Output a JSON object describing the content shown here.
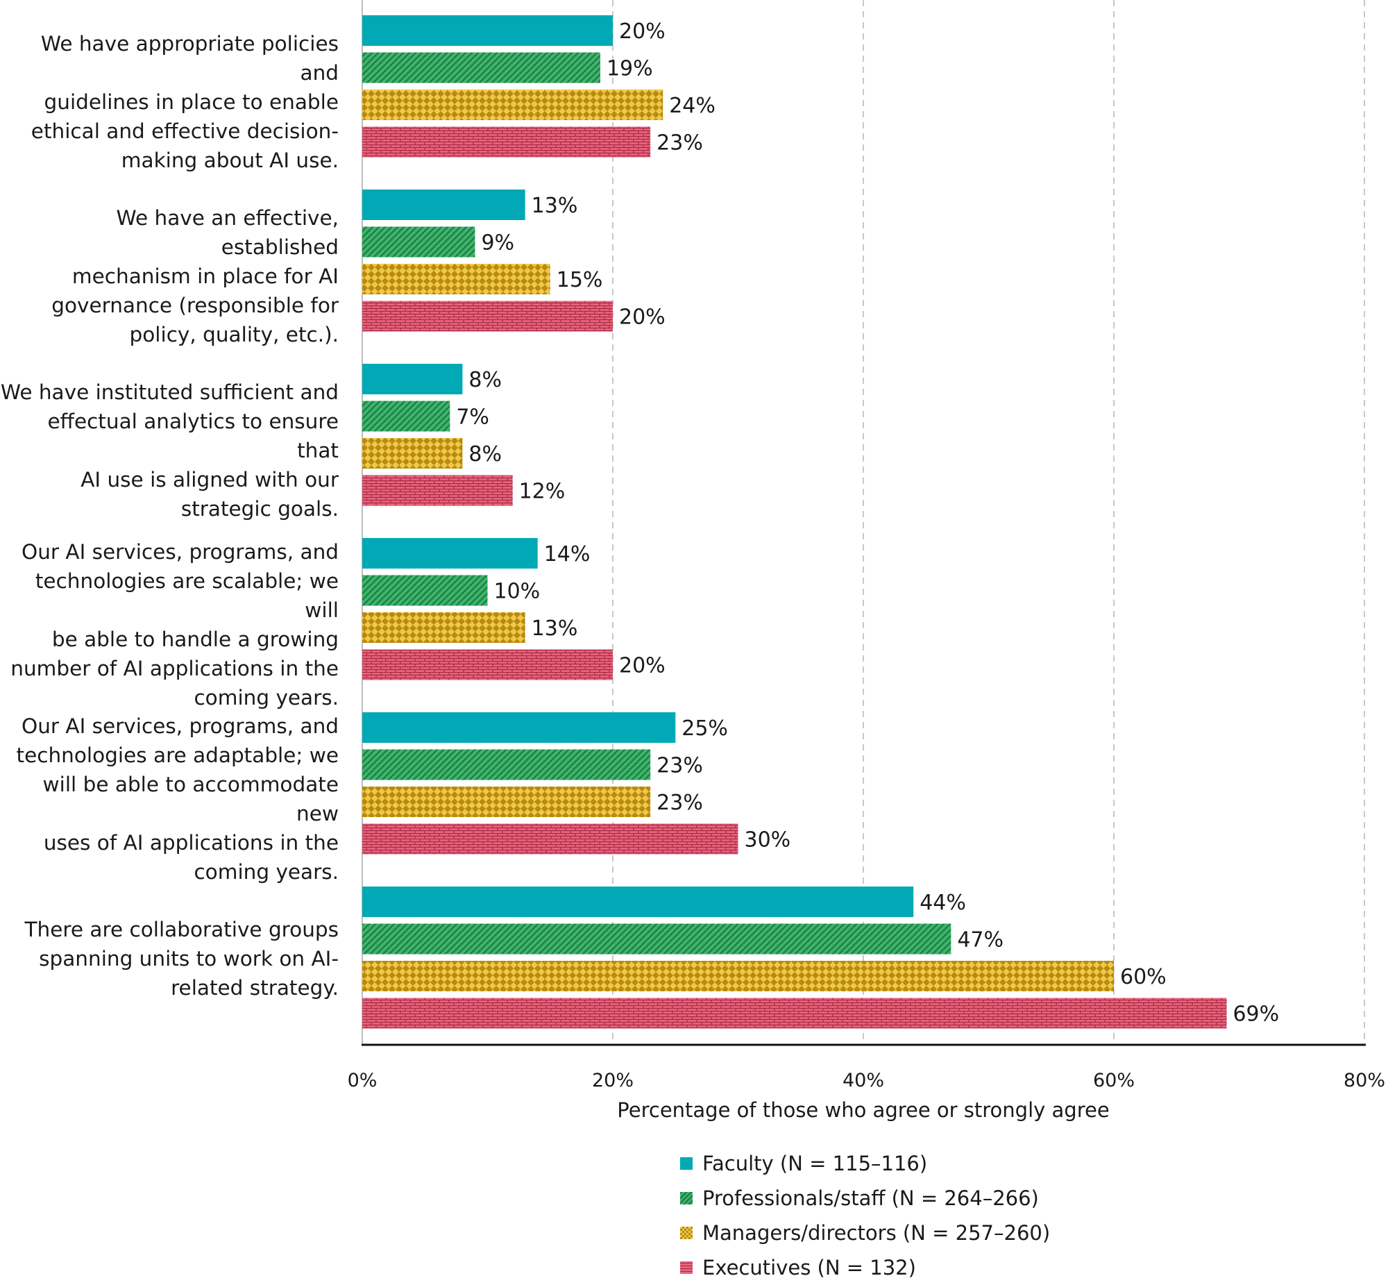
{
  "chart_data": {
    "type": "bar",
    "orientation": "horizontal",
    "categories": [
      "We have appropriate policies and guidelines in place to enable ethical and effective decision-making about AI use.",
      "We have an effective, established mechanism in place for AI governance (responsible for policy, quality, etc.).",
      "We have instituted sufficient and effectual analytics to ensure that AI use is aligned with our strategic goals.",
      "Our AI services, programs, and technologies are scalable; we will be able to handle a growing number of AI applications in the coming years.",
      "Our AI services, programs, and technologies are adaptable; we will be able to accommodate new uses of AI applications in the coming years.",
      "There are collaborative groups spanning units to work on AI-related strategy."
    ],
    "category_lines": [
      [
        "We have appropriate policies and",
        "guidelines in place to enable",
        "ethical and effective decision-",
        "making about AI use."
      ],
      [
        "We have an effective, established",
        "mechanism in place for AI",
        "governance (responsible for",
        "policy, quality, etc.)."
      ],
      [
        "We have instituted sufficient and",
        "effectual analytics to ensure that",
        "AI use is aligned with our",
        "strategic goals."
      ],
      [
        "Our AI services, programs, and",
        "technologies are scalable; we will",
        "be able to handle a growing",
        "number of AI applications in the",
        "coming years."
      ],
      [
        "Our AI services, programs, and",
        "technologies are adaptable; we",
        "will be able to accommodate new",
        "uses of AI applications in the",
        "coming years."
      ],
      [
        "There are collaborative groups",
        "spanning units to work on AI-",
        "related strategy."
      ]
    ],
    "series": [
      {
        "name": "Faculty (N = 115–116)",
        "color": "#00a9b5",
        "pattern": "solid",
        "values": [
          20,
          13,
          8,
          14,
          25,
          44
        ]
      },
      {
        "name": "Professionals/staff (N = 264–266)",
        "color": "#3db56b",
        "pattern": "diagonal",
        "values": [
          19,
          9,
          7,
          10,
          23,
          47
        ]
      },
      {
        "name": "Managers/directors (N = 257–260)",
        "color": "#d6a21e",
        "pattern": "checker",
        "values": [
          24,
          15,
          8,
          13,
          23,
          60
        ]
      },
      {
        "name": "Executives (N = 132)",
        "color": "#d94560",
        "pattern": "brick",
        "values": [
          23,
          20,
          12,
          20,
          30,
          69
        ]
      }
    ],
    "value_suffix": "%",
    "xlabel": "Percentage of those who agree or strongly agree",
    "xlim": [
      0,
      80
    ],
    "xticks": [
      0,
      20,
      40,
      60,
      80
    ],
    "xtick_labels": [
      "0%",
      "20%",
      "40%",
      "60%",
      "80%"
    ],
    "grid": "vertical dashed",
    "legend_position": "bottom"
  }
}
